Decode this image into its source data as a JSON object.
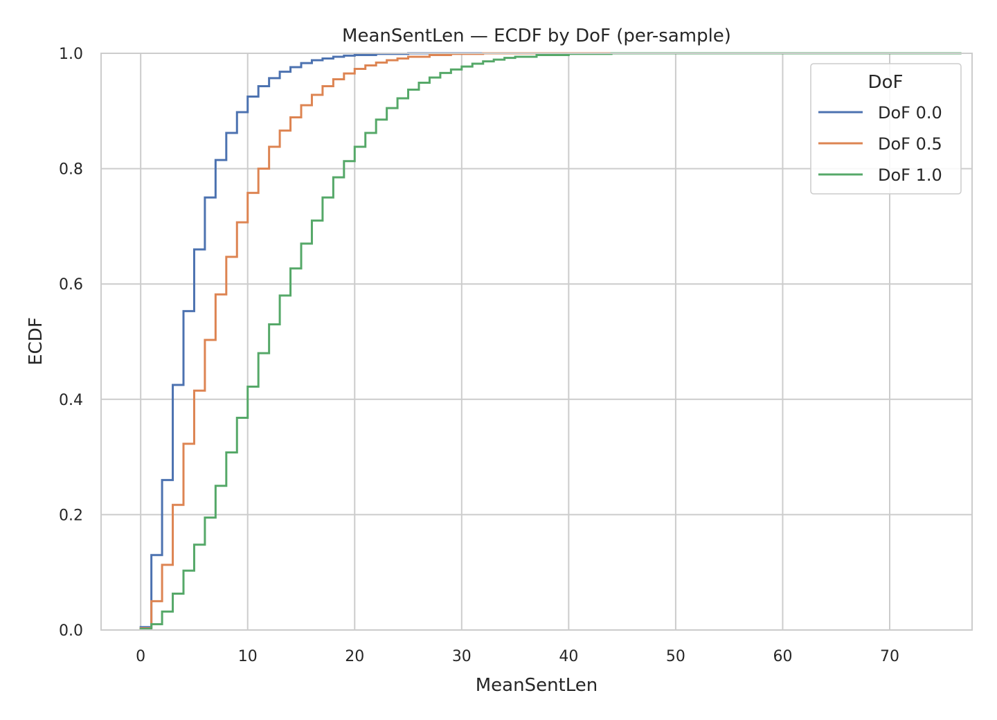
{
  "chart_data": {
    "type": "line",
    "step": true,
    "title": "MeanSentLen — ECDF by DoF (per-sample)",
    "xlabel": "MeanSentLen",
    "ylabel": "ECDF",
    "xlim": [
      -3.7,
      77.7
    ],
    "ylim": [
      0,
      1
    ],
    "xticks": [
      0,
      10,
      20,
      30,
      40,
      50,
      60,
      70
    ],
    "xtick_labels": [
      "0",
      "10",
      "20",
      "30",
      "40",
      "50",
      "60",
      "70"
    ],
    "yticks": [
      0,
      0.2,
      0.4,
      0.6,
      0.8,
      1.0
    ],
    "ytick_labels": [
      "0.0",
      "0.2",
      "0.4",
      "0.6",
      "0.8",
      "1.0"
    ],
    "grid": true,
    "legend": {
      "title": "DoF",
      "placement": "top-right",
      "entries": [
        "DoF 0.0",
        "DoF 0.5",
        "DoF 1.0"
      ]
    },
    "series": [
      {
        "name": "DoF 0.0",
        "color": "#4c72b0",
        "x": [
          0,
          1,
          2,
          3,
          4,
          5,
          6,
          7,
          8,
          9,
          10,
          11,
          12,
          13,
          14,
          15,
          16,
          17,
          18,
          19,
          20,
          22,
          25
        ],
        "y": [
          0.005,
          0.13,
          0.26,
          0.425,
          0.553,
          0.66,
          0.75,
          0.815,
          0.862,
          0.898,
          0.925,
          0.943,
          0.957,
          0.968,
          0.976,
          0.983,
          0.988,
          0.991,
          0.994,
          0.996,
          0.997,
          0.999,
          1.0
        ]
      },
      {
        "name": "DoF 0.5",
        "color": "#dd8452",
        "x": [
          0,
          1,
          2,
          3,
          4,
          5,
          6,
          7,
          8,
          9,
          10,
          11,
          12,
          13,
          14,
          15,
          16,
          17,
          18,
          19,
          20,
          21,
          22,
          23,
          24,
          25,
          27,
          29,
          32
        ],
        "y": [
          0.003,
          0.05,
          0.113,
          0.217,
          0.323,
          0.415,
          0.503,
          0.582,
          0.647,
          0.707,
          0.758,
          0.8,
          0.838,
          0.866,
          0.889,
          0.91,
          0.928,
          0.943,
          0.955,
          0.965,
          0.973,
          0.979,
          0.984,
          0.988,
          0.991,
          0.994,
          0.997,
          0.999,
          1.0
        ]
      },
      {
        "name": "DoF 1.0",
        "color": "#55a868",
        "x": [
          0,
          1,
          2,
          3,
          4,
          5,
          6,
          7,
          8,
          9,
          10,
          11,
          12,
          13,
          14,
          15,
          16,
          17,
          18,
          19,
          20,
          21,
          22,
          23,
          24,
          25,
          26,
          27,
          28,
          29,
          30,
          31,
          32,
          33,
          34,
          35,
          37,
          40,
          44
        ],
        "y": [
          0.002,
          0.01,
          0.032,
          0.063,
          0.103,
          0.148,
          0.195,
          0.25,
          0.308,
          0.368,
          0.422,
          0.48,
          0.53,
          0.58,
          0.627,
          0.67,
          0.71,
          0.75,
          0.785,
          0.813,
          0.838,
          0.862,
          0.885,
          0.905,
          0.922,
          0.937,
          0.949,
          0.958,
          0.966,
          0.972,
          0.977,
          0.982,
          0.986,
          0.989,
          0.992,
          0.994,
          0.997,
          0.999,
          1.0
        ]
      }
    ]
  }
}
